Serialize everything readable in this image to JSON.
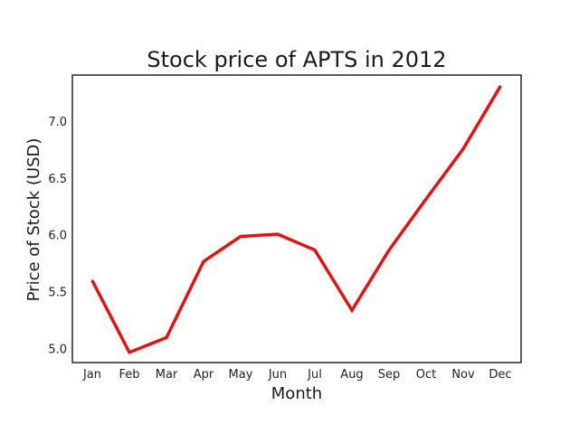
{
  "chart_data": {
    "type": "line",
    "title": "Stock price of APTS in 2012",
    "xlabel": "Month",
    "ylabel": "Price of Stock (USD)",
    "categories": [
      "Jan",
      "Feb",
      "Mar",
      "Apr",
      "May",
      "Jun",
      "Jul",
      "Aug",
      "Sep",
      "Oct",
      "Nov",
      "Dec"
    ],
    "series": [
      {
        "values": [
          5.6,
          4.97,
          5.1,
          5.77,
          5.99,
          6.01,
          5.87,
          5.34,
          5.87,
          6.32,
          6.76,
          7.31
        ],
        "color": "#e8110f"
      }
    ],
    "yticks": [
      5.0,
      5.5,
      6.0,
      6.5,
      7.0
    ],
    "ytick_labels": [
      "5.0",
      "5.5",
      "6.0",
      "6.5",
      "7.0"
    ],
    "ylim": [
      4.88,
      7.41
    ],
    "grid": false,
    "legend": "none"
  }
}
